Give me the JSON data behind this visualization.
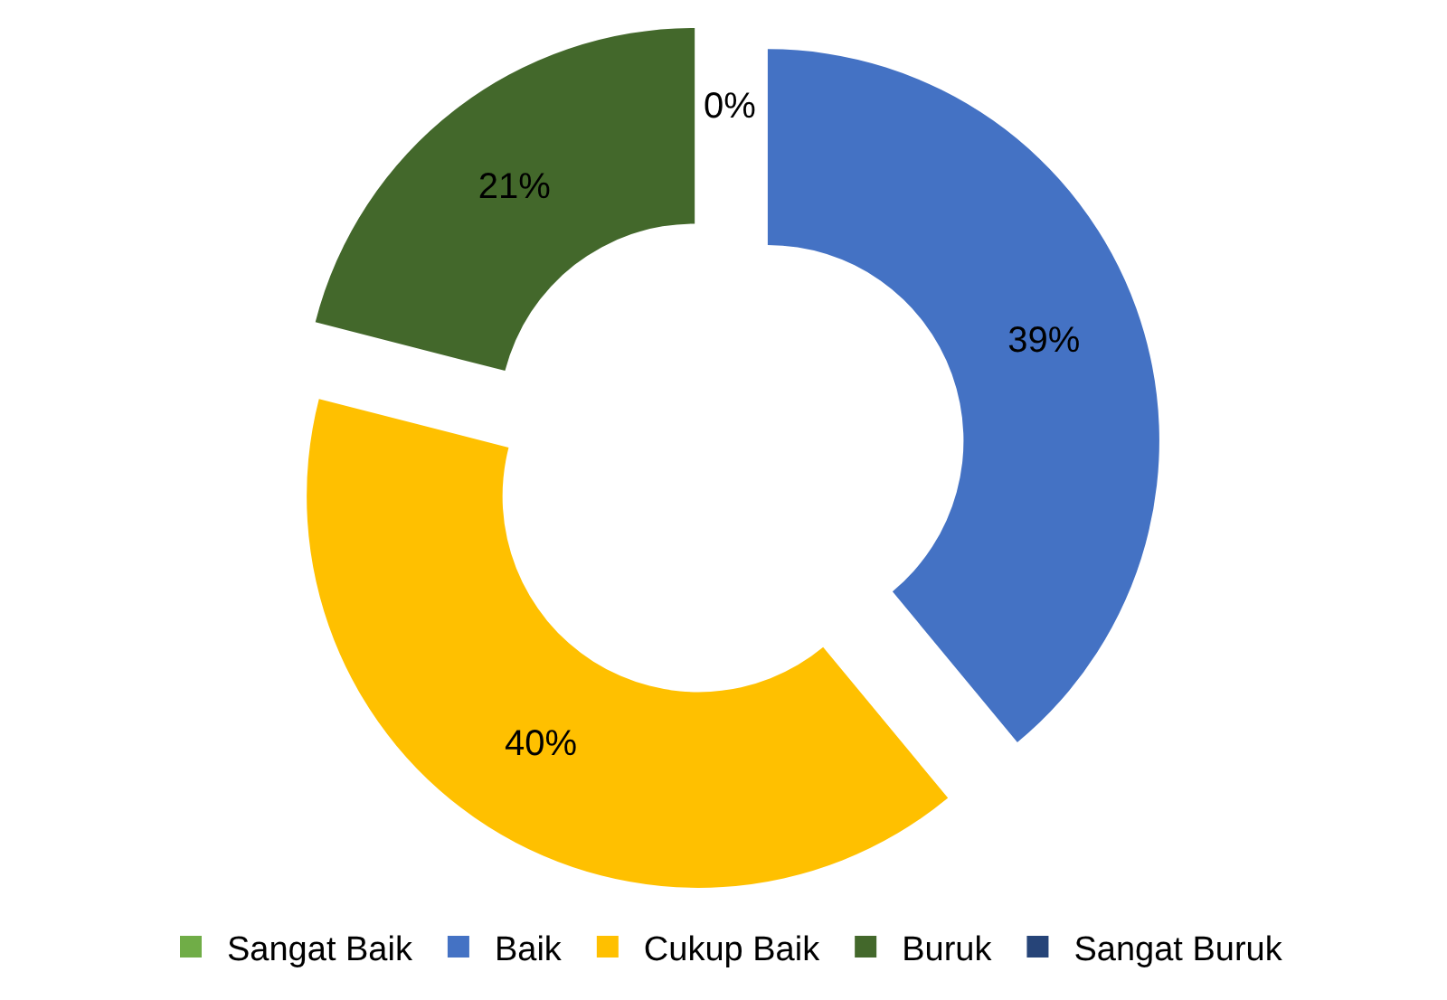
{
  "chart_data": {
    "type": "donut",
    "categories": [
      "Sangat Baik",
      "Baik",
      "Cukup Baik",
      "Buruk",
      "Sangat Buruk"
    ],
    "values": [
      0,
      39,
      40,
      21,
      0
    ],
    "colors": [
      "#70ad47",
      "#4472c4",
      "#ffc000",
      "#43682b",
      "#264478"
    ],
    "value_labels": [
      "0%",
      "39%",
      "40%",
      "21%",
      null
    ],
    "legend": "bottom"
  }
}
